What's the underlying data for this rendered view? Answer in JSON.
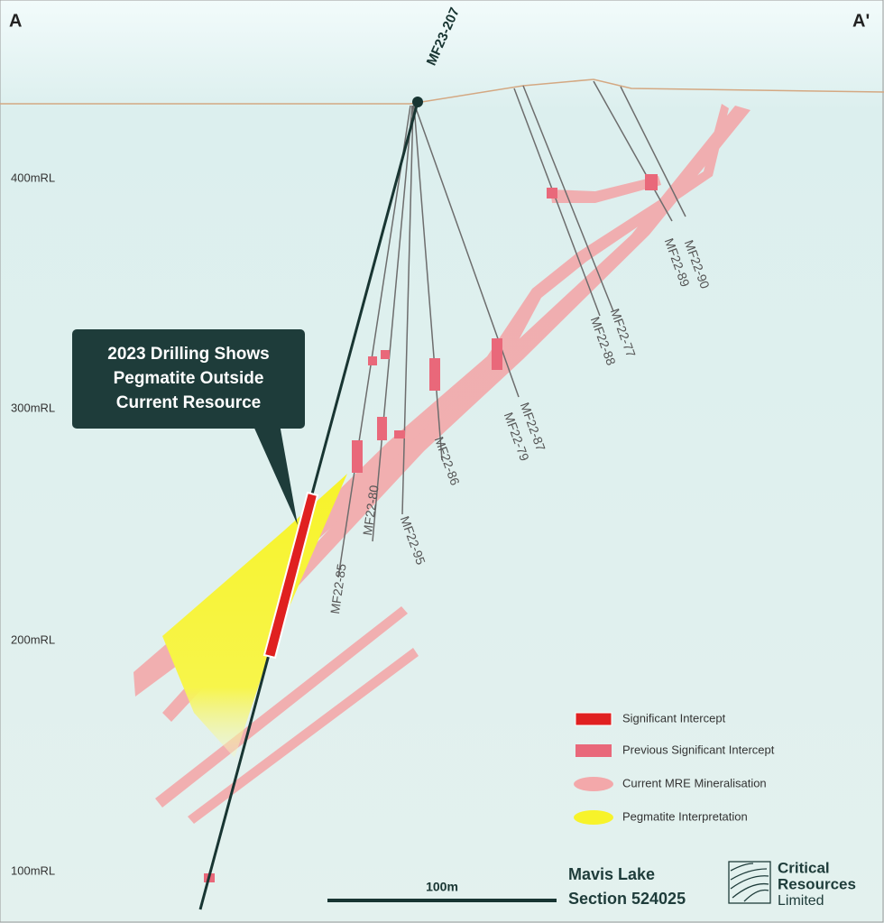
{
  "section": {
    "start": "A",
    "end": "A'"
  },
  "main_hole": "MF23-207",
  "elevations": [
    "400mRL",
    "300mRL",
    "200mRL",
    "100mRL"
  ],
  "callout": [
    "2023 Drilling Shows",
    "Pegmatite Outside",
    "Current Resource"
  ],
  "holes": [
    "MF22-90",
    "MF22-89",
    "MF22-77",
    "MF22-88",
    "MF22-87",
    "MF22-79",
    "MF22-86",
    "MF22-95",
    "MF22-80",
    "MF22-85"
  ],
  "legend": [
    "Significant Intercept",
    "Previous Significant Intercept",
    "Current MRE Mineralisation",
    "Pegmatite Interpretation"
  ],
  "scale": "100m",
  "title": [
    "Mavis Lake",
    "Section 524025"
  ],
  "logo": [
    "Critical",
    "Resources",
    "Limited"
  ]
}
